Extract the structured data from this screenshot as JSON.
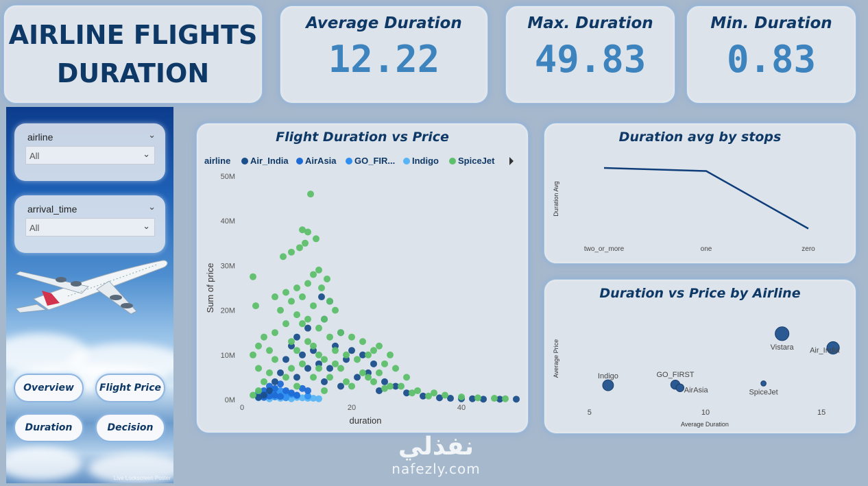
{
  "title": "AIRLINE FLIGHTS DURATION",
  "kpis": {
    "average": {
      "label": "Average Duration",
      "value": "12.22"
    },
    "max": {
      "label": "Max. Duration",
      "value": "49.83"
    },
    "min": {
      "label": "Min. Duration",
      "value": "0.83"
    }
  },
  "slicers": {
    "airline": {
      "label": "airline",
      "value": "All"
    },
    "arrival_time": {
      "label": "arrival_time",
      "value": "All"
    }
  },
  "nav": {
    "overview": "Overview",
    "flight_price": "Flight Price",
    "duration": "Duration",
    "decision": "Decision"
  },
  "sidebar_credit": "Live Lockscreen Poster",
  "watermark": {
    "arabic": "نفذلي",
    "latin": "nafezly.com"
  },
  "colors": {
    "accent": "#0e3866",
    "kpi_value": "#3d84bf",
    "Air_India": "#1b4f8c",
    "AirAsia": "#1e6bd6",
    "GO_FIRST": "#2f8ff0",
    "Indigo": "#58b4f5",
    "SpiceJet": "#5cbf6a",
    "line": "#0e3d7a",
    "bubble": "#2a5a91"
  },
  "chart_data": [
    {
      "id": "scatter",
      "type": "scatter",
      "title": "Flight Duration vs Price",
      "xlabel": "duration",
      "ylabel": "Sum of price",
      "legend_title": "airline",
      "legend_entries": [
        "Air_India",
        "AirAsia",
        "GO_FIR...",
        "Indigo",
        "SpiceJet"
      ],
      "legend_position": "top",
      "xlim": [
        0,
        50
      ],
      "ylim": [
        0,
        50000000
      ],
      "xticks": [
        "0",
        "20",
        "40"
      ],
      "yticks": [
        "0M",
        "10M",
        "20M",
        "30M",
        "40M",
        "50M"
      ],
      "series": [
        {
          "name": "Air_India",
          "points": [
            [
              14.5,
              23
            ],
            [
              16,
              22
            ],
            [
              15,
              18
            ],
            [
              12,
              16
            ],
            [
              10,
              14
            ],
            [
              18,
              15
            ],
            [
              20,
              11
            ],
            [
              22,
              10
            ],
            [
              17,
              12
            ],
            [
              13,
              11
            ],
            [
              9,
              12
            ],
            [
              8,
              9
            ],
            [
              11,
              10
            ],
            [
              19,
              9
            ],
            [
              14,
              8
            ],
            [
              16,
              7
            ],
            [
              24,
              8
            ],
            [
              23,
              6
            ],
            [
              21,
              5
            ],
            [
              12,
              7
            ],
            [
              7,
              6
            ],
            [
              6,
              4
            ],
            [
              10,
              5
            ],
            [
              15,
              4
            ],
            [
              26,
              4
            ],
            [
              28,
              3
            ],
            [
              25,
              2
            ],
            [
              30,
              1.5
            ],
            [
              33,
              0.8
            ],
            [
              36,
              0.4
            ],
            [
              38,
              0.3
            ],
            [
              40,
              0.2
            ],
            [
              42,
              0.2
            ],
            [
              44,
              0.1
            ],
            [
              47,
              0.1
            ],
            [
              50,
              0.1
            ],
            [
              5,
              2
            ],
            [
              4,
              1
            ],
            [
              3,
              0.5
            ],
            [
              18,
              3
            ]
          ]
        },
        {
          "name": "AirAsia",
          "points": [
            [
              3,
              1.5
            ],
            [
              4,
              2
            ],
            [
              5,
              3
            ],
            [
              6,
              2.5
            ],
            [
              7,
              3.5
            ],
            [
              8,
              2
            ],
            [
              9,
              1.5
            ],
            [
              6,
              1
            ],
            [
              5,
              0.8
            ],
            [
              10,
              1
            ],
            [
              11,
              2.5
            ],
            [
              12,
              2
            ],
            [
              4,
              0.5
            ],
            [
              7,
              0.7
            ]
          ]
        },
        {
          "name": "GO_FIRST",
          "points": [
            [
              4,
              1.2
            ],
            [
              5,
              1.8
            ],
            [
              6,
              2.2
            ],
            [
              7,
              2
            ],
            [
              8,
              1.6
            ],
            [
              9,
              1.2
            ],
            [
              10,
              0.9
            ],
            [
              6,
              0.6
            ],
            [
              8,
              0.4
            ],
            [
              12,
              0.8
            ]
          ]
        },
        {
          "name": "Indigo",
          "points": [
            [
              3,
              0.4
            ],
            [
              4,
              0.6
            ],
            [
              5,
              1
            ],
            [
              6,
              1.4
            ],
            [
              7,
              1.2
            ],
            [
              8,
              0.9
            ],
            [
              9,
              0.7
            ],
            [
              10,
              0.5
            ],
            [
              11,
              0.4
            ],
            [
              12,
              0.3
            ],
            [
              5,
              0.2
            ],
            [
              7,
              0.3
            ],
            [
              9,
              0.2
            ],
            [
              13,
              0.3
            ],
            [
              14,
              0.2
            ]
          ]
        },
        {
          "name": "SpiceJet",
          "points": [
            [
              12.5,
              46
            ],
            [
              11,
              38
            ],
            [
              12,
              37.5
            ],
            [
              13.5,
              36
            ],
            [
              10.5,
              34
            ],
            [
              11.5,
              35
            ],
            [
              9,
              33
            ],
            [
              14,
              29
            ],
            [
              7.5,
              32
            ],
            [
              13,
              28
            ],
            [
              15.5,
              27
            ],
            [
              2,
              27.5
            ],
            [
              12,
              26
            ],
            [
              14.5,
              25
            ],
            [
              10,
              25
            ],
            [
              8,
              24
            ],
            [
              11,
              23
            ],
            [
              16,
              22
            ],
            [
              6,
              23
            ],
            [
              9,
              22
            ],
            [
              13,
              21
            ],
            [
              17,
              20
            ],
            [
              2.5,
              21
            ],
            [
              7,
              20
            ],
            [
              10,
              19
            ],
            [
              12,
              18
            ],
            [
              15,
              18
            ],
            [
              11,
              17
            ],
            [
              14,
              16
            ],
            [
              8,
              17
            ],
            [
              6,
              15
            ],
            [
              18,
              15
            ],
            [
              16,
              14
            ],
            [
              20,
              14
            ],
            [
              9,
              13
            ],
            [
              12,
              13
            ],
            [
              22,
              13
            ],
            [
              25,
              12
            ],
            [
              13,
              12
            ],
            [
              17,
              11
            ],
            [
              24,
              11
            ],
            [
              10,
              11
            ],
            [
              19,
              10
            ],
            [
              23,
              10
            ],
            [
              27,
              10
            ],
            [
              15,
              9
            ],
            [
              21,
              9
            ],
            [
              26,
              8
            ],
            [
              11,
              8
            ],
            [
              28,
              7
            ],
            [
              14,
              7
            ],
            [
              3,
              7
            ],
            [
              18,
              7
            ],
            [
              22,
              6
            ],
            [
              25,
              6
            ],
            [
              30,
              5
            ],
            [
              8,
              5
            ],
            [
              13,
              5
            ],
            [
              19,
              4
            ],
            [
              24,
              4
            ],
            [
              27,
              3
            ],
            [
              29,
              3
            ],
            [
              32,
              2
            ],
            [
              35,
              1.5
            ],
            [
              4,
              4
            ],
            [
              5,
              6
            ],
            [
              6,
              9
            ],
            [
              2,
              10
            ],
            [
              3,
              12
            ],
            [
              4,
              14
            ],
            [
              5,
              11
            ],
            [
              16,
              5
            ],
            [
              20,
              3
            ],
            [
              10,
              3
            ],
            [
              15,
              2
            ],
            [
              37,
              1
            ],
            [
              40,
              0.6
            ],
            [
              43,
              0.4
            ],
            [
              46,
              0.3
            ],
            [
              48,
              0.2
            ],
            [
              2,
              1
            ],
            [
              3,
              2
            ],
            [
              34,
              0.8
            ],
            [
              31,
              1.5
            ],
            [
              26,
              2.5
            ],
            [
              23,
              5
            ],
            [
              9,
              7
            ],
            [
              14,
              10
            ],
            [
              17,
              8
            ]
          ]
        }
      ]
    },
    {
      "id": "stops",
      "type": "line",
      "title": "Duration avg by stops",
      "ylabel": "Duration Avg",
      "categories": [
        "two_or_more",
        "one",
        "zero"
      ],
      "values": [
        14.0,
        13.4,
        2.2
      ],
      "ylim": [
        0,
        16
      ]
    },
    {
      "id": "bubble",
      "type": "scatter",
      "title": "Duration vs Price by Airline",
      "xlabel": "Average Duration",
      "ylabel": "Average Price",
      "xlim": [
        4,
        16
      ],
      "ylim": [
        0,
        40000
      ],
      "xticks": [
        "5",
        "10",
        "15"
      ],
      "points": [
        {
          "label": "Vistara",
          "x": 13.3,
          "y": 30400,
          "size": 4.2
        },
        {
          "label": "Air_India",
          "x": 15.5,
          "y": 23500,
          "size": 3.8
        },
        {
          "label": "Indigo",
          "x": 5.8,
          "y": 5300,
          "size": 3.3
        },
        {
          "label": "GO_FIRST",
          "x": 8.7,
          "y": 5600,
          "size": 2.8
        },
        {
          "label": "AirAsia",
          "x": 8.9,
          "y": 4100,
          "size": 2.4
        },
        {
          "label": "SpiceJet",
          "x": 12.5,
          "y": 6200,
          "size": 1.6
        }
      ]
    }
  ]
}
